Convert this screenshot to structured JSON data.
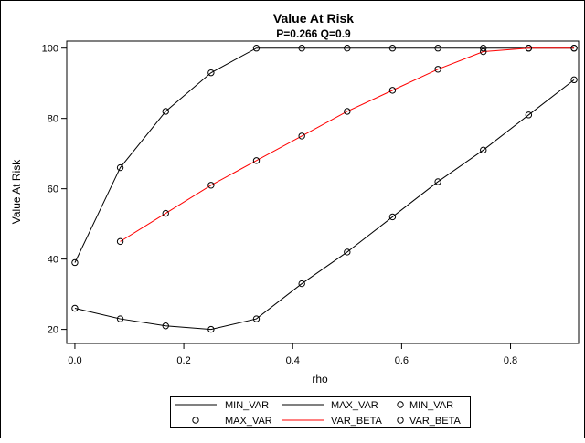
{
  "chart_data": {
    "type": "line",
    "title": "Value At Risk",
    "subtitle": "P=0.266 Q=0.9",
    "xlabel": "rho",
    "ylabel": "Value At Risk",
    "xlim": [
      -0.015,
      0.925
    ],
    "ylim": [
      16,
      102
    ],
    "xticks": [
      0.0,
      0.2,
      0.4,
      0.6,
      0.8
    ],
    "xtick_labels": [
      "0.0",
      "0.2",
      "0.4",
      "0.6",
      "0.8"
    ],
    "yticks": [
      20,
      40,
      60,
      80,
      100
    ],
    "ytick_labels": [
      "20",
      "40",
      "60",
      "80",
      "100"
    ],
    "grid": false,
    "legend_position": "bottom",
    "series": [
      {
        "name": "MIN_VAR",
        "color": "#000000",
        "x": [
          0.0,
          0.0833,
          0.1667,
          0.25,
          0.3333,
          0.4167,
          0.5,
          0.5833,
          0.6667,
          0.75,
          0.8333,
          0.9167
        ],
        "values": [
          26,
          23,
          21,
          20,
          23,
          33,
          42,
          52,
          62,
          71,
          81,
          91
        ]
      },
      {
        "name": "MAX_VAR",
        "color": "#000000",
        "x": [
          0.0,
          0.0833,
          0.1667,
          0.25,
          0.3333,
          0.4167,
          0.5,
          0.5833,
          0.6667,
          0.75,
          0.8333,
          0.9167
        ],
        "values": [
          39,
          66,
          82,
          93,
          100,
          100,
          100,
          100,
          100,
          100,
          100,
          100
        ]
      },
      {
        "name": "VAR_BETA",
        "color": "#ff0000",
        "x": [
          0.0833,
          0.1667,
          0.25,
          0.3333,
          0.4167,
          0.5,
          0.5833,
          0.6667,
          0.75,
          0.8333,
          0.9167
        ],
        "values": [
          45,
          53,
          61,
          68,
          75,
          82,
          88,
          94,
          99,
          100,
          100
        ]
      }
    ],
    "legend": [
      {
        "label": "MIN_VAR",
        "kind": "line",
        "color": "#000000"
      },
      {
        "label": "MAX_VAR",
        "kind": "line",
        "color": "#000000"
      },
      {
        "label": "MIN_VAR",
        "kind": "marker",
        "color": "#000000"
      },
      {
        "label": "MAX_VAR",
        "kind": "marker",
        "color": "#000000"
      },
      {
        "label": "VAR_BETA",
        "kind": "line",
        "color": "#ff0000"
      },
      {
        "label": "VAR_BETA",
        "kind": "marker",
        "color": "#000000"
      }
    ]
  }
}
